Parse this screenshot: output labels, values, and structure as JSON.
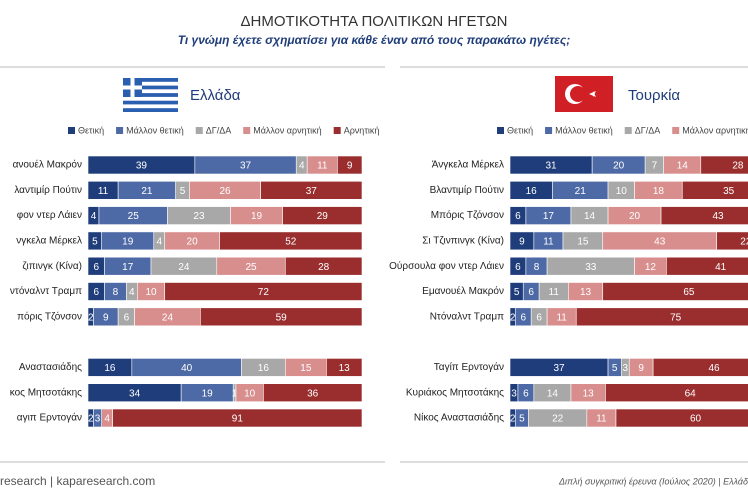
{
  "title": "ΔΗΜΟΤΙΚΟΤΗΤΑ ΠΟΛΙΤΙΚΩΝ ΗΓΕΤΩΝ",
  "subtitle": "Τι γνώμη έχετε σχηματίσει για κάθε έναν από τους παρακάτω ηγέτες;",
  "footer_left": "research | kaparesearch.com",
  "footer_right": "Διπλή συγκριτική έρευνα (Ιούλιος 2020) | Ελλάδ",
  "chart_data": [
    {
      "type": "stacked-barh",
      "title": "Ελλάδα",
      "categories": [
        "ανουέλ Μακρόν",
        "λαντιμίρ Πούτιν",
        "φον ντερ Λάιεν",
        "νγκελα Μέρκελ",
        "ζιπινγκ (Κίνα)",
        "ντόναλντ Τραμπ",
        "πόρις Τζόνσον",
        null,
        "Αναστασιάδης",
        "κος Μητσοτάκης",
        "αγιπ Ερντογάν"
      ],
      "xlim": [
        0,
        100
      ],
      "series": [
        {
          "name": "Θετική",
          "color": "#1f3d7a",
          "values": [
            39,
            11,
            4,
            5,
            6,
            6,
            2,
            null,
            16,
            34,
            2
          ]
        },
        {
          "name": "Μάλλον θετική",
          "color": "#4d6aa6",
          "values": [
            37,
            21,
            25,
            19,
            17,
            8,
            9,
            null,
            40,
            19,
            3
          ]
        },
        {
          "name": "ΔΓ/ΔΑ",
          "color": "#a8a8a8",
          "values": [
            4,
            5,
            23,
            4,
            24,
            4,
            6,
            null,
            16,
            1,
            0
          ]
        },
        {
          "name": "Μάλλον αρνητική",
          "color": "#d98e8e",
          "values": [
            11,
            26,
            19,
            20,
            25,
            10,
            24,
            null,
            15,
            10,
            4
          ]
        },
        {
          "name": "Αρνητική",
          "color": "#9a2e2e",
          "values": [
            9,
            37,
            29,
            52,
            28,
            72,
            59,
            null,
            13,
            36,
            91
          ]
        }
      ]
    },
    {
      "type": "stacked-barh",
      "title": "Τουρκία",
      "categories": [
        "Άνγκελα Μέρκελ",
        "Βλαντιμίρ Πούτιν",
        "Μπόρις Τζόνσον",
        "Σι Τζινπινγκ (Κίνα)",
        "Ούρσουλα φον ντερ Λάιεν",
        "Εμανουέλ Μακρόν",
        "Ντόναλντ Τραμπ",
        null,
        "Ταγίπ Ερντογάν",
        "Κυριάκος Μητσοτάκης",
        "Νίκος Αναστασιάδης"
      ],
      "xlim": [
        0,
        100
      ],
      "series": [
        {
          "name": "Θετική",
          "color": "#1f3d7a",
          "values": [
            31,
            16,
            6,
            9,
            6,
            5,
            2,
            null,
            37,
            3,
            2
          ]
        },
        {
          "name": "Μάλλον θετική",
          "color": "#4d6aa6",
          "values": [
            20,
            21,
            17,
            11,
            8,
            6,
            6,
            null,
            5,
            6,
            5
          ]
        },
        {
          "name": "ΔΓ/ΔΑ",
          "color": "#a8a8a8",
          "values": [
            7,
            10,
            14,
            15,
            33,
            11,
            6,
            null,
            3,
            14,
            22
          ]
        },
        {
          "name": "Μάλλον αρνητική",
          "color": "#d98e8e",
          "values": [
            14,
            18,
            20,
            43,
            12,
            13,
            11,
            null,
            9,
            13,
            11
          ]
        },
        {
          "name": null,
          "color": "#9a2e2e",
          "values": [
            28,
            35,
            43,
            22,
            41,
            65,
            75,
            null,
            46,
            64,
            60
          ]
        }
      ]
    }
  ]
}
